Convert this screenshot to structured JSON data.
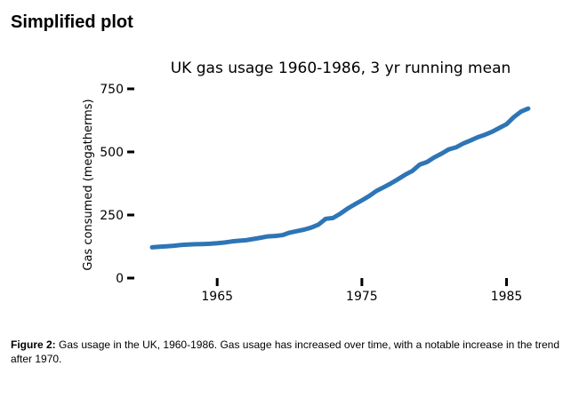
{
  "page_heading": "Simplified plot",
  "caption": {
    "label": "Figure 2:",
    "text": " Gas usage in the UK, 1960-1986. Gas usage has increased over time, with a notable increase in the trend after 1970."
  },
  "chart_data": {
    "type": "line",
    "title": "UK gas usage 1960-1986, 3 yr running mean",
    "xlabel": "",
    "ylabel": "Gas consumed (megatherms)",
    "xlim": [
      1960.5,
      1986.75
    ],
    "ylim": [
      0,
      750
    ],
    "xticks": [
      1965,
      1975,
      1985
    ],
    "xtick_labels": [
      "1965",
      "1975",
      "1985"
    ],
    "yticks": [
      0,
      250,
      500,
      750
    ],
    "ytick_labels": [
      "0",
      "250",
      "500",
      "750"
    ],
    "grid": false,
    "legend": "none",
    "line_color": "#2e75b6",
    "series": [
      {
        "x": [
          1960.5,
          1961,
          1961.5,
          1962,
          1962.5,
          1963,
          1963.5,
          1964,
          1964.5,
          1965,
          1965.5,
          1966,
          1966.5,
          1967,
          1967.5,
          1968,
          1968.5,
          1969,
          1969.5,
          1970,
          1970.5,
          1971,
          1971.5,
          1972,
          1972.5,
          1973,
          1973.5,
          1974,
          1974.5,
          1975,
          1975.5,
          1976,
          1976.5,
          1977,
          1977.5,
          1978,
          1978.5,
          1979,
          1979.5,
          1980,
          1980.5,
          1981,
          1981.5,
          1982,
          1982.5,
          1983,
          1983.5,
          1984,
          1984.5,
          1985,
          1985.5,
          1986,
          1986.5
        ],
        "y": [
          122,
          124,
          126,
          128,
          131,
          133,
          134,
          135,
          136,
          138,
          141,
          145,
          148,
          150,
          155,
          160,
          165,
          167,
          170,
          180,
          186,
          192,
          200,
          212,
          235,
          238,
          255,
          275,
          292,
          308,
          325,
          345,
          360,
          375,
          392,
          410,
          425,
          450,
          460,
          478,
          493,
          510,
          518,
          533,
          545,
          558,
          568,
          580,
          595,
          610,
          638,
          660,
          672
        ]
      }
    ]
  }
}
